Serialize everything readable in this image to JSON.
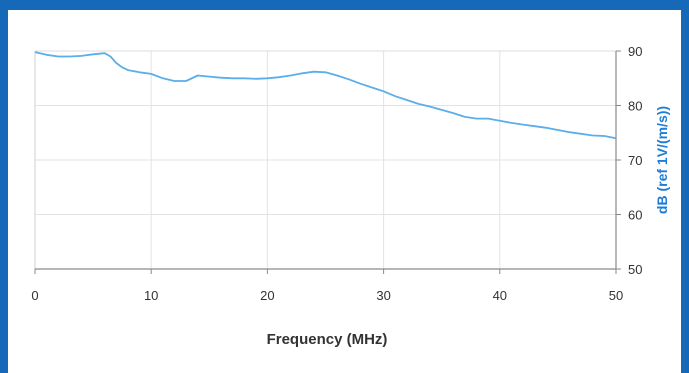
{
  "chart_data": {
    "type": "line",
    "title": "",
    "xlabel": "Frequency (MHz)",
    "ylabel": "dB (ref 1V/(m/s))",
    "xlim": [
      0,
      50
    ],
    "ylim": [
      50,
      90
    ],
    "xticks": [
      "0",
      "10",
      "20",
      "30",
      "40",
      "50"
    ],
    "yticks": [
      "90",
      "80",
      "70",
      "60",
      "50"
    ],
    "y_axis_side": "right",
    "grid": true,
    "legend": "none",
    "line_color": "#5aaeea",
    "x": [
      0,
      1,
      2,
      3,
      4,
      5,
      6,
      6.5,
      7,
      7.5,
      8,
      9,
      10,
      11,
      12,
      13,
      14,
      15,
      16,
      17,
      18,
      19,
      20,
      21,
      22,
      23,
      24,
      25,
      26,
      27,
      28,
      29,
      30,
      31,
      32,
      33,
      34,
      35,
      36,
      37,
      38,
      39,
      40,
      41,
      42,
      43,
      44,
      45,
      46,
      47,
      48,
      49,
      50
    ],
    "series": [
      {
        "values": [
          89.8,
          89.3,
          89.0,
          89.0,
          89.1,
          89.4,
          89.6,
          89.0,
          87.8,
          87.0,
          86.5,
          86.1,
          85.8,
          85.0,
          84.5,
          84.5,
          85.5,
          85.3,
          85.1,
          85.0,
          85.0,
          84.9,
          85.0,
          85.2,
          85.5,
          85.9,
          86.2,
          86.1,
          85.5,
          84.8,
          84.0,
          83.3,
          82.6,
          81.7,
          81.0,
          80.3,
          79.8,
          79.2,
          78.6,
          77.9,
          77.6,
          77.6,
          77.2,
          76.8,
          76.5,
          76.2,
          75.9,
          75.5,
          75.1,
          74.8,
          74.5,
          74.4,
          74.0
        ]
      }
    ]
  }
}
